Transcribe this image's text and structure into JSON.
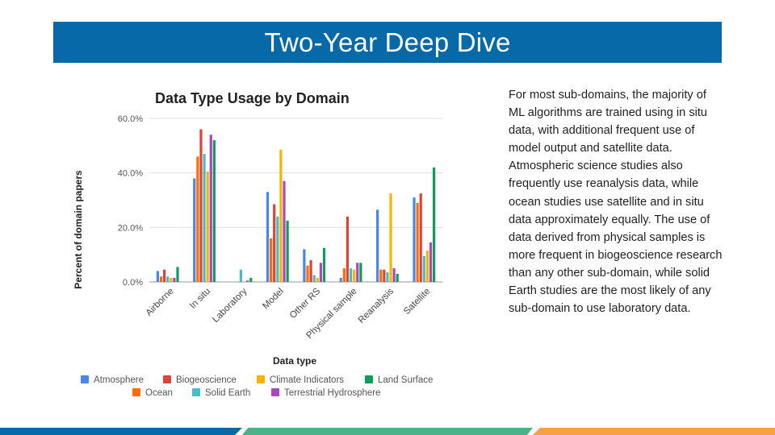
{
  "slide": {
    "title": "Two-Year Deep Dive",
    "body": "For most sub-domains, the majority of ML algorithms are trained using in situ data, with additional frequent use of model output and satellite data. Atmospheric science studies also frequently use reanalysis data, while ocean studies use satellite and in situ data approximately equally. The use of data derived from physical samples is more frequent in biogeoscience research than any other sub-domain, while solid Earth studies are the most likely of any sub-domain to use laboratory data."
  },
  "footer": {
    "colors": [
      "#0769a8",
      "#4bb28a",
      "#f5a04a"
    ]
  },
  "chart_data": {
    "type": "bar",
    "title": "Data Type Usage by Domain",
    "xlabel": "Data type",
    "ylabel": "Percent of domain papers",
    "ylim": [
      0,
      60
    ],
    "yticks": [
      "0.0%",
      "20.0%",
      "40.0%",
      "60.0%"
    ],
    "ytick_values": [
      0,
      20,
      40,
      60
    ],
    "grid": true,
    "legend_position": "bottom",
    "categories": [
      "Airborne",
      "In situ",
      "Laboratory",
      "Model",
      "Other RS",
      "Physical sample",
      "Reanalysis",
      "Satellite"
    ],
    "series": [
      {
        "name": "Atmosphere",
        "color": "#4a86e8",
        "values": [
          4,
          38,
          0,
          33,
          12,
          1.5,
          26.5,
          31
        ]
      },
      {
        "name": "Ocean",
        "color": "#ff6d01",
        "values": [
          2,
          46,
          0,
          16,
          6,
          5,
          4.5,
          29
        ]
      },
      {
        "name": "Biogeoscience",
        "color": "#db4437",
        "values": [
          4.5,
          56,
          0,
          28.5,
          8,
          24,
          4.5,
          32.5
        ]
      },
      {
        "name": "Solid Earth",
        "color": "#46bdc6",
        "values": [
          2,
          47,
          4.5,
          24,
          2.5,
          5,
          3.5,
          9.5
        ]
      },
      {
        "name": "Climate Indicators",
        "color": "#f4b400",
        "values": [
          1.5,
          40.5,
          0,
          48.5,
          1.5,
          4.5,
          32.5,
          11.5
        ]
      },
      {
        "name": "Terrestrial Hydrosphere",
        "color": "#ab47bc",
        "values": [
          1.5,
          54,
          0.5,
          37,
          7,
          7,
          5,
          14.5
        ]
      },
      {
        "name": "Land Surface",
        "color": "#0f9d58",
        "values": [
          5.5,
          52,
          1.5,
          22.5,
          12.5,
          7,
          3,
          42
        ]
      }
    ]
  }
}
